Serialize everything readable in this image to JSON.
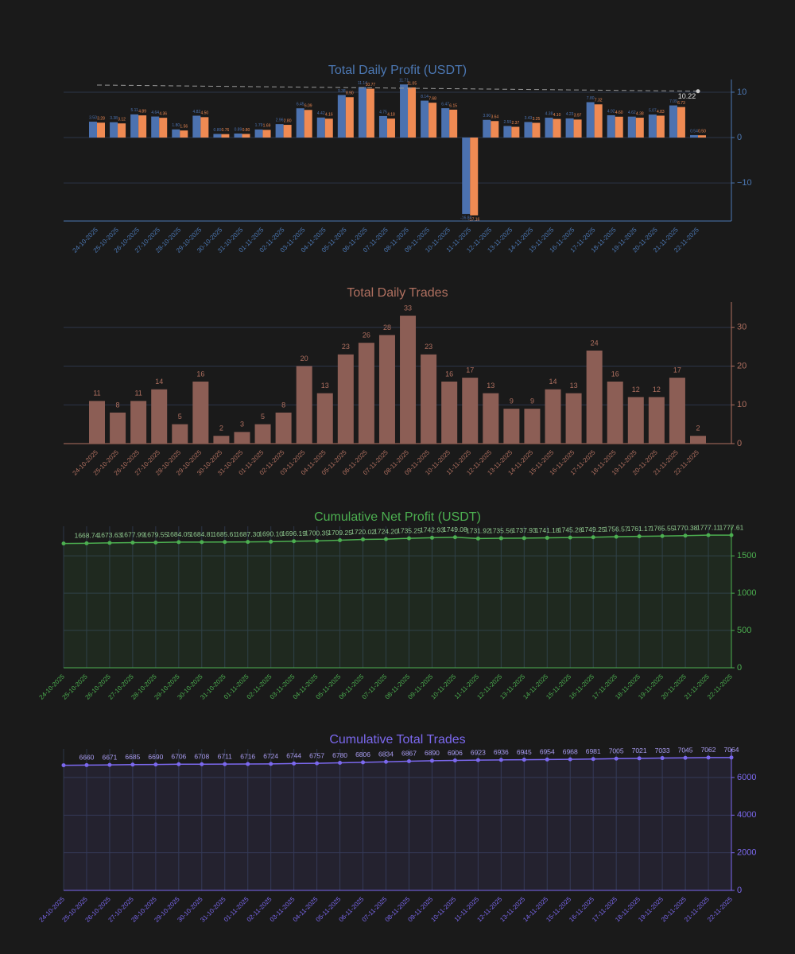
{
  "chart_data": [
    {
      "type": "bar",
      "title": "Total Daily Profit (USDT)",
      "theme_color": "#4c78b4",
      "categories": [
        "24-10-2025",
        "25-10-2025",
        "26-10-2025",
        "27-10-2025",
        "28-10-2025",
        "29-10-2025",
        "30-10-2025",
        "31-10-2025",
        "01-11-2025",
        "02-11-2025",
        "03-11-2025",
        "04-11-2025",
        "05-11-2025",
        "06-11-2025",
        "07-11-2025",
        "08-11-2025",
        "09-11-2025",
        "10-11-2025",
        "11-11-2025",
        "12-11-2025",
        "13-11-2025",
        "14-11-2025",
        "15-11-2025",
        "16-11-2025",
        "17-11-2025",
        "18-11-2025",
        "19-11-2025",
        "20-11-2025",
        "21-11-2025",
        "22-11-2025"
      ],
      "series": [
        {
          "color": "#4c72b0",
          "values": [
            3.5,
            3.38,
            5.11,
            4.64,
            1.8,
            4.82,
            0.8,
            0.89,
            1.79,
            2.96,
            6.45,
            4.42,
            9.38,
            11.14,
            4.75,
            11.71,
            8.14,
            6.47,
            -16.84,
            3.9,
            2.55,
            3.43,
            4.38,
            4.23,
            7.8,
            4.92,
            4.62,
            5.07,
            7.09,
            0.54
          ],
          "value_labels": [
            "3.50",
            "3.38",
            "5.11",
            "4.64",
            "1.80",
            "4.82",
            "0.80",
            "0.89",
            "1.79",
            "2.96",
            "6.45",
            "4.42",
            "9.38",
            "11.14",
            "4.75",
            "11.71",
            "8.14",
            "6.47",
            "-16.84",
            "3.90",
            "2.55",
            "3.43",
            "4.38",
            "4.23",
            "7.80",
            "4.92",
            "4.62",
            "5.07",
            "7.09",
            "0.54"
          ]
        },
        {
          "color": "#ef8a53",
          "values": [
            3.28,
            3.12,
            4.89,
            4.36,
            1.56,
            4.5,
            0.76,
            0.8,
            1.69,
            2.8,
            6.09,
            4.16,
            8.9,
            10.77,
            4.18,
            11.05,
            7.68,
            6.15,
            -17.16,
            3.64,
            2.37,
            3.25,
            4.1,
            3.97,
            7.32,
            4.6,
            4.38,
            4.83,
            6.73,
            0.5
          ],
          "value_labels": [
            "3.28",
            "3.12",
            "4.89",
            "4.36",
            "1.56",
            "4.50",
            "0.76",
            "0.80",
            "1.69",
            "2.80",
            "6.09",
            "4.16",
            "8.90",
            "10.77",
            "4.18",
            "11.05",
            "7.68",
            "6.15",
            "-17.16",
            "3.64",
            "2.37",
            "3.25",
            "4.10",
            "3.97",
            "7.32",
            "4.60",
            "4.38",
            "4.83",
            "6.73",
            "0.50"
          ]
        }
      ],
      "reference_line": {
        "values": [
          11.58,
          10.22
        ],
        "color": "#999999"
      },
      "ylim": [
        -18.4,
        12.8
      ],
      "yticks": [
        {
          "value": -10,
          "label": "−10"
        },
        0,
        10
      ],
      "grid": true,
      "xgrid": false
    },
    {
      "type": "bar",
      "title": "Total Daily Trades",
      "theme_color": "#b07060",
      "color": "#8c5e55",
      "categories": [
        "24-10-2025",
        "25-10-2025",
        "26-10-2025",
        "27-10-2025",
        "28-10-2025",
        "29-10-2025",
        "30-10-2025",
        "31-10-2025",
        "01-11-2025",
        "02-11-2025",
        "03-11-2025",
        "04-11-2025",
        "05-11-2025",
        "06-11-2025",
        "07-11-2025",
        "08-11-2025",
        "09-11-2025",
        "10-11-2025",
        "11-11-2025",
        "12-11-2025",
        "13-11-2025",
        "14-11-2025",
        "15-11-2025",
        "16-11-2025",
        "17-11-2025",
        "18-11-2025",
        "19-11-2025",
        "20-11-2025",
        "21-11-2025",
        "22-11-2025"
      ],
      "values": [
        11,
        8,
        11,
        14,
        5,
        16,
        2,
        3,
        5,
        8,
        20,
        13,
        23,
        26,
        28,
        33,
        23,
        16,
        17,
        13,
        9,
        9,
        14,
        13,
        24,
        16,
        12,
        12,
        17,
        2
      ],
      "ylim": [
        0,
        36.5
      ],
      "yticks": [
        0,
        10,
        20,
        30
      ],
      "grid": true,
      "xgrid": false
    },
    {
      "type": "line",
      "title": "Cumulative Net Profit (USDT)",
      "theme_color": "#4caf50",
      "color": "#4caf50",
      "fill": "rgba(76,175,80,0.10)",
      "categories": [
        "24-10-2025",
        "25-10-2025",
        "26-10-2025",
        "27-10-2025",
        "28-10-2025",
        "29-10-2025",
        "30-10-2025",
        "31-10-2025",
        "01-11-2025",
        "02-11-2025",
        "03-11-2025",
        "04-11-2025",
        "05-11-2025",
        "06-11-2025",
        "07-11-2025",
        "08-11-2025",
        "09-11-2025",
        "10-11-2025",
        "11-11-2025",
        "12-11-2025",
        "13-11-2025",
        "14-11-2025",
        "15-11-2025",
        "16-11-2025",
        "17-11-2025",
        "18-11-2025",
        "19-11-2025",
        "20-11-2025",
        "21-11-2025",
        "22-11-2025"
      ],
      "values": [
        1665.62,
        1668.74,
        1673.63,
        1677.99,
        1679.55,
        1684.05,
        1684.81,
        1685.61,
        1687.3,
        1690.1,
        1696.19,
        1700.35,
        1709.25,
        1720.02,
        1724.2,
        1735.25,
        1742.93,
        1749.08,
        1731.92,
        1735.56,
        1737.93,
        1741.18,
        1745.28,
        1749.25,
        1756.57,
        1761.17,
        1765.55,
        1770.38,
        1777.11,
        1777.61
      ],
      "value_labels": [
        null,
        "1668.74",
        "1673.63",
        "1677.99",
        "1679.55",
        "1684.05",
        "1684.81",
        "1685.61",
        "1687.30",
        "1690.10",
        "1696.19",
        "1700.35",
        "1709.25",
        "1720.02",
        "1724.20",
        "1735.25",
        "1742.93",
        "1749.08",
        "1731.92",
        "1735.56",
        "1737.93",
        "1741.18",
        "1745.28",
        "1749.25",
        "1756.57",
        "1761.17",
        "1765.55",
        "1770.38",
        "1777.11",
        "1777.61"
      ],
      "ylim": [
        0,
        1896
      ],
      "yticks": [
        0,
        500,
        1000,
        1500
      ],
      "grid": true,
      "xgrid": true
    },
    {
      "type": "line",
      "title": "Cumulative Total Trades",
      "theme_color": "#7b68ee",
      "color": "#7b68ee",
      "fill": "rgba(123,104,238,0.10)",
      "categories": [
        "24-10-2025",
        "25-10-2025",
        "26-10-2025",
        "27-10-2025",
        "28-10-2025",
        "29-10-2025",
        "30-10-2025",
        "31-10-2025",
        "01-11-2025",
        "02-11-2025",
        "03-11-2025",
        "04-11-2025",
        "05-11-2025",
        "06-11-2025",
        "07-11-2025",
        "08-11-2025",
        "09-11-2025",
        "10-11-2025",
        "11-11-2025",
        "12-11-2025",
        "13-11-2025",
        "14-11-2025",
        "15-11-2025",
        "16-11-2025",
        "17-11-2025",
        "18-11-2025",
        "19-11-2025",
        "20-11-2025",
        "21-11-2025",
        "22-11-2025"
      ],
      "values": [
        6652,
        6660,
        6671,
        6685,
        6690,
        6706,
        6708,
        6711,
        6716,
        6724,
        6744,
        6757,
        6780,
        6806,
        6834,
        6867,
        6890,
        6906,
        6923,
        6936,
        6945,
        6954,
        6968,
        6981,
        7005,
        7021,
        7033,
        7045,
        7062,
        7064
      ],
      "value_labels": [
        null,
        "6660",
        "6671",
        "6685",
        "6690",
        "6706",
        "6708",
        "6711",
        "6716",
        "6724",
        "6744",
        "6757",
        "6780",
        "6806",
        "6834",
        "6867",
        "6890",
        "6906",
        "6923",
        "6936",
        "6945",
        "6954",
        "6968",
        "6981",
        "7005",
        "7021",
        "7033",
        "7045",
        "7062",
        "7064"
      ],
      "ylim": [
        0,
        7521
      ],
      "yticks": [
        0,
        2000,
        4000,
        6000
      ],
      "grid": true,
      "xgrid": true
    }
  ]
}
